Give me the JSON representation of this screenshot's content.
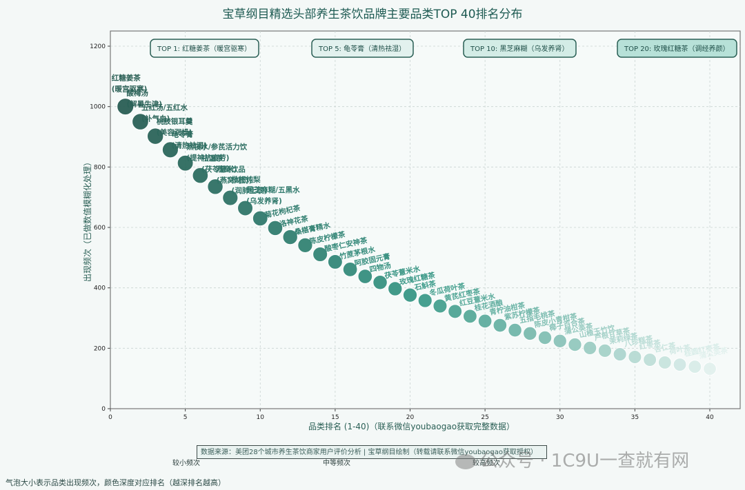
{
  "title": "宝草纲目精选头部养生茶饮品牌主要品类TOP 40排名分布",
  "axes": {
    "xlabel": "品类排名 (1-40)（联系微信youbaogao获取完整数据）",
    "ylabel": "出现频次（已做数值模糊化处理）",
    "xticks": [
      "0",
      "5",
      "10",
      "15",
      "20",
      "25",
      "30",
      "35",
      "40"
    ],
    "yticks": [
      "0",
      "200",
      "400",
      "600",
      "800",
      "1000",
      "1200"
    ]
  },
  "callouts": [
    {
      "label": "TOP 1: 红糖姜茶（暖宫驱寒）"
    },
    {
      "label": "TOP 5: 龟苓膏（清热祛湿）"
    },
    {
      "label": "TOP 10: 黑芝麻糊（乌发养肾）"
    },
    {
      "label": "TOP 20: 玫瑰红糖茶（调经养颜）"
    }
  ],
  "footer": {
    "source": "数据来源：美团28个城市养生茶饮商家用户评价分析 | 宝草纲目绘制（转载请联系微信youbaogao获取授权）",
    "note": "气泡大小表示品类出现频次，颜色深度对应排名（越深排名越高）",
    "size_legend": [
      "较小频次",
      "中等频次",
      "较高频次"
    ],
    "watermark": "公众号 · 1C9U一查就有网"
  },
  "chart_data": {
    "type": "scatter",
    "title": "宝草纲目精选头部养生茶饮品牌主要品类TOP 40排名分布",
    "xlabel": "品类排名 (1-40)（联系微信youbaogao获取完整数据）",
    "ylabel": "出现频次（已做数值模糊化处理）",
    "xlim": [
      0,
      42
    ],
    "ylim": [
      0,
      1250
    ],
    "grid": true,
    "bubble": true,
    "x": [
      1,
      2,
      3,
      4,
      5,
      6,
      7,
      8,
      9,
      10,
      11,
      12,
      13,
      14,
      15,
      16,
      17,
      18,
      19,
      20,
      21,
      22,
      23,
      24,
      25,
      26,
      27,
      28,
      29,
      30,
      31,
      32,
      33,
      34,
      35,
      36,
      37,
      38,
      39,
      40
    ],
    "values": [
      1000,
      950,
      902,
      857,
      813,
      772,
      735,
      698,
      664,
      630,
      598,
      568,
      541,
      511,
      486,
      461,
      438,
      418,
      397,
      376,
      358,
      340,
      322,
      306,
      290,
      276,
      260,
      249,
      235,
      224,
      212,
      201,
      192,
      180,
      171,
      162,
      153,
      146,
      139,
      132
    ],
    "labels": [
      "红糖姜茶\n(暖宫驱寒)",
      "酸梅汤\n(解暑生津)",
      "五红汤/五红水\n(补气血)",
      "桃胶银耳羹\n(美容润燥)",
      "龟苓膏\n(清热祛湿)",
      "熬夜水/参芪活力饮\n(提神抗疲劳)",
      "祛湿茶\n(茯苓薏米)",
      "燕窝饮品\n(燕窝炖奶)",
      "枇杷炖梨\n(润肺止咳)",
      "黑芝麻糊/五黑水\n(乌发养肾)",
      "菊花枸杞茶",
      "洛神花茶",
      "桑椹膏精水",
      "陈皮柠檬茶",
      "酸枣仁安神茶",
      "竹蔗茅根水",
      "阿胶固元膏",
      "四物汤",
      "茯苓薏米水",
      "玫瑰红糖茶",
      "石斛茶",
      "冬瓜荷叶茶",
      "黄芪红枣茶",
      "红豆薏米水",
      "桂花酒酿",
      "青柠油柑茶",
      "紫苏柠檬茶",
      "五指毛桃茶",
      "陈皮小青柑茶",
      "椰子百合茶",
      "蒲公英茶",
      "山楂玉竹饮",
      "芦根甘草茶",
      "茉莉绿茶",
      "八珍糕茶",
      "红枣茶",
      "杏仁茶",
      "荷叶茶",
      "桂圆红枣茶",
      "蒲公英茶"
    ],
    "callout_annotations": [
      {
        "rank": 1,
        "text": "TOP 1: 红糖姜茶（暖宫驱寒）"
      },
      {
        "rank": 5,
        "text": "TOP 5: 龟苓膏（清热祛湿）"
      },
      {
        "rank": 10,
        "text": "TOP 10: 黑芝麻糊（乌发养肾）"
      },
      {
        "rank": 20,
        "text": "TOP 20: 玫瑰红糖茶（调经养颜）"
      }
    ],
    "colormap": {
      "high_rank": "#2a5f55",
      "mid_rank": "#3a9a88",
      "low_rank": "#e2f1ee"
    }
  }
}
